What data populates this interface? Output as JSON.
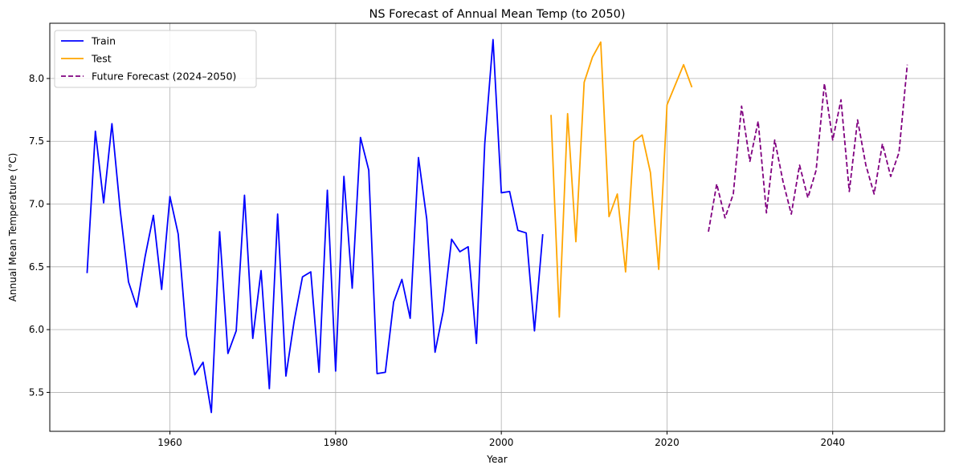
{
  "chart_data": {
    "type": "line",
    "title": "NS Forecast of Annual Mean Temp (to 2050)",
    "xlabel": "Year",
    "ylabel": "Annual Mean Temperature (°C)",
    "xlim": [
      1945.5,
      2053.5
    ],
    "ylim": [
      5.19,
      8.44
    ],
    "xticks": [
      1960,
      1980,
      2000,
      2020,
      2040
    ],
    "yticks": [
      5.5,
      6.0,
      6.5,
      7.0,
      7.5,
      8.0
    ],
    "xtick_labels": [
      "1960",
      "1980",
      "2000",
      "2020",
      "2040"
    ],
    "ytick_labels": [
      "5.5",
      "6.0",
      "6.5",
      "7.0",
      "7.5",
      "8.0"
    ],
    "grid": true,
    "legend_position": "top-left",
    "series": [
      {
        "name": "Train",
        "color": "#0000ff",
        "dashed": false,
        "x": [
          1950,
          1951,
          1952,
          1953,
          1954,
          1955,
          1956,
          1957,
          1958,
          1959,
          1960,
          1961,
          1962,
          1963,
          1964,
          1965,
          1966,
          1967,
          1968,
          1969,
          1970,
          1971,
          1972,
          1973,
          1974,
          1975,
          1976,
          1977,
          1978,
          1979,
          1980,
          1981,
          1982,
          1983,
          1984,
          1985,
          1986,
          1987,
          1988,
          1989,
          1990,
          1991,
          1992,
          1993,
          1994,
          1995,
          1996,
          1997,
          1998,
          1999,
          2000,
          2001,
          2002,
          2003,
          2004,
          2005
        ],
        "y": [
          6.45,
          7.58,
          7.01,
          7.64,
          6.95,
          6.38,
          6.18,
          6.58,
          6.91,
          6.32,
          7.06,
          6.76,
          5.95,
          5.64,
          5.74,
          5.34,
          6.78,
          5.81,
          5.99,
          7.07,
          5.93,
          6.47,
          5.53,
          6.92,
          5.63,
          6.07,
          6.42,
          6.46,
          5.66,
          7.11,
          5.67,
          7.22,
          6.33,
          7.53,
          7.27,
          5.65,
          5.66,
          6.22,
          6.4,
          6.09,
          7.37,
          6.88,
          5.82,
          6.15,
          6.72,
          6.62,
          6.66,
          5.89,
          7.48,
          8.31,
          7.09,
          7.1,
          6.79,
          6.77,
          5.99,
          6.76
        ]
      },
      {
        "name": "Test",
        "color": "#ffa500",
        "dashed": false,
        "x": [
          2006,
          2007,
          2008,
          2009,
          2010,
          2011,
          2012,
          2013,
          2014,
          2015,
          2016,
          2017,
          2018,
          2019,
          2020,
          2021,
          2022,
          2023
        ],
        "y": [
          7.71,
          6.1,
          7.72,
          6.7,
          7.97,
          8.17,
          8.29,
          6.9,
          7.08,
          6.46,
          7.5,
          7.55,
          7.25,
          6.48,
          7.79,
          7.95,
          8.11,
          7.93
        ]
      },
      {
        "name": "Future Forecast (2024–2050)",
        "color": "#800080",
        "dashed": true,
        "x": [
          2025,
          2026,
          2027,
          2028,
          2029,
          2030,
          2031,
          2032,
          2033,
          2034,
          2035,
          2036,
          2037,
          2038,
          2039,
          2040,
          2041,
          2042,
          2043,
          2044,
          2045,
          2046,
          2047,
          2048,
          2049
        ],
        "y": [
          6.78,
          7.16,
          6.89,
          7.08,
          7.78,
          7.34,
          7.66,
          6.93,
          7.51,
          7.18,
          6.92,
          7.31,
          7.05,
          7.27,
          7.96,
          7.51,
          7.83,
          7.1,
          7.67,
          7.31,
          7.08,
          7.48,
          7.22,
          7.41,
          8.11
        ]
      }
    ]
  }
}
